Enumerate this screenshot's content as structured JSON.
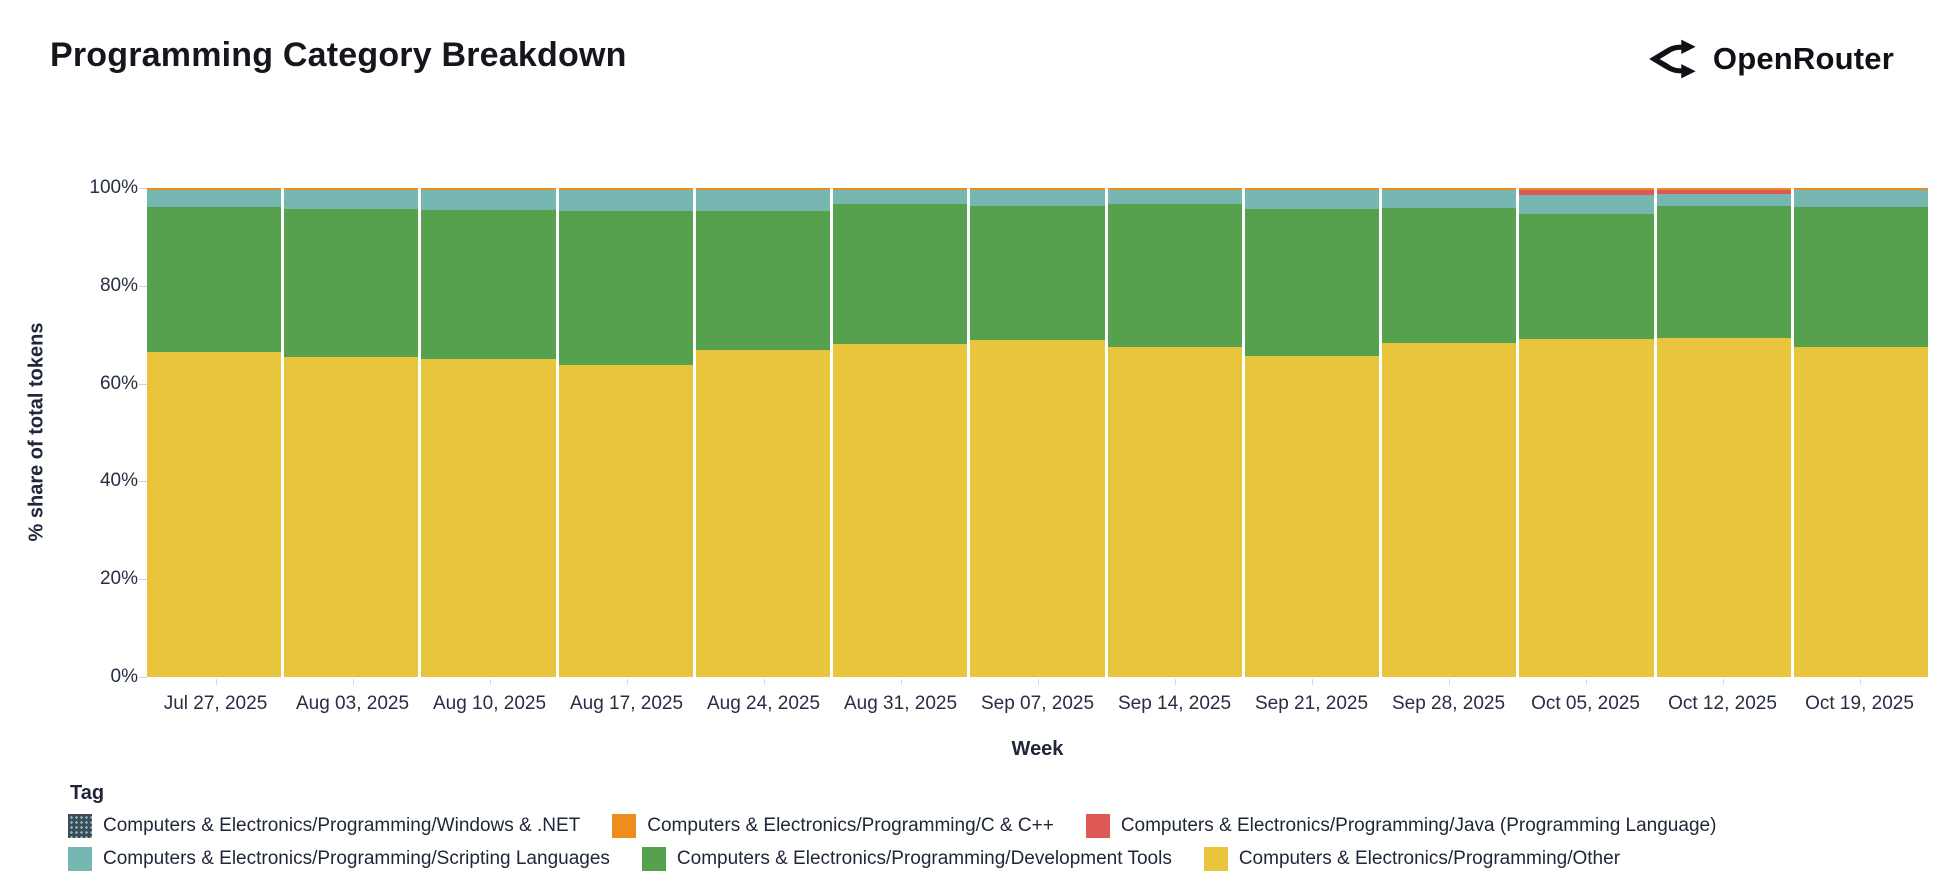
{
  "header": {
    "title": "Programming Category Breakdown",
    "brand": "OpenRouter"
  },
  "chart_data": {
    "type": "bar",
    "stacked": true,
    "unit": "%",
    "title": "Programming Category Breakdown",
    "xlabel": "Week",
    "ylabel": "% share of total tokens",
    "ylim": [
      0,
      100
    ],
    "y_ticks": [
      "0%",
      "20%",
      "40%",
      "60%",
      "80%",
      "100%"
    ],
    "grid": false,
    "categories": [
      "Jul 27, 2025",
      "Aug 03, 2025",
      "Aug 10, 2025",
      "Aug 17, 2025",
      "Aug 24, 2025",
      "Aug 31, 2025",
      "Sep 07, 2025",
      "Sep 14, 2025",
      "Sep 21, 2025",
      "Sep 28, 2025",
      "Oct 05, 2025",
      "Oct 12, 2025",
      "Oct 19, 2025"
    ],
    "series": [
      {
        "id": "other",
        "name": "Computers & Electronics/Programming/Other",
        "color": "#E9C53D",
        "hatched": false,
        "values": [
          66.5,
          65.5,
          65.0,
          63.9,
          66.9,
          68.0,
          69.0,
          67.4,
          65.6,
          68.4,
          69.2,
          69.4,
          67.4
        ]
      },
      {
        "id": "development-tools",
        "name": "Computers & Electronics/Programming/Development Tools",
        "color": "#55A14E",
        "hatched": false,
        "values": [
          29.6,
          30.3,
          30.6,
          31.4,
          28.3,
          28.7,
          27.4,
          29.3,
          30.2,
          27.6,
          25.5,
          27.0,
          28.8
        ]
      },
      {
        "id": "scripting-languages",
        "name": "Computers & Electronics/Programming/Scripting Languages",
        "color": "#76B7B2",
        "hatched": false,
        "values": [
          3.4,
          3.7,
          3.9,
          4.2,
          4.3,
          2.8,
          3.1,
          2.8,
          3.7,
          3.5,
          3.9,
          2.4,
          3.3
        ]
      },
      {
        "id": "java",
        "name": "Computers & Electronics/Programming/Java (Programming Language)",
        "color": "#DE5956",
        "hatched": false,
        "values": [
          0.1,
          0.1,
          0.1,
          0.1,
          0.1,
          0.1,
          0.1,
          0.1,
          0.1,
          0.1,
          1.0,
          0.8,
          0.1
        ]
      },
      {
        "id": "c-cpp",
        "name": "Computers & Electronics/Programming/C & C++",
        "color": "#EE8C1E",
        "hatched": false,
        "values": [
          0.35,
          0.35,
          0.35,
          0.35,
          0.35,
          0.35,
          0.35,
          0.35,
          0.35,
          0.35,
          0.35,
          0.35,
          0.35
        ]
      },
      {
        "id": "windows-net",
        "name": "Computers & Electronics/Programming/Windows & .NET",
        "color": "#3E4A5C",
        "hatched": true,
        "values": [
          0.05,
          0.05,
          0.05,
          0.05,
          0.05,
          0.05,
          0.05,
          0.05,
          0.05,
          0.05,
          0.05,
          0.05,
          0.05
        ]
      }
    ],
    "legend_title": "Tag",
    "legend_position": "bottom"
  },
  "legend": {
    "rows": [
      [
        "windows-net",
        "c-cpp",
        "java"
      ],
      [
        "scripting-languages",
        "development-tools",
        "other"
      ]
    ]
  }
}
